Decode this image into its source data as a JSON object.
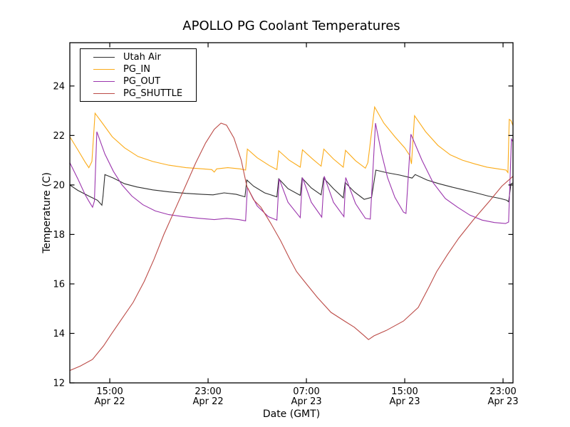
{
  "chart_data": {
    "type": "line",
    "title": "APOLLO PG Coolant Temperatures",
    "xlabel": "Date (GMT)",
    "ylabel": "Temperature (C)",
    "x_unit_hours_since": "Apr 22 00:00 GMT",
    "xlim": [
      11.75,
      47.81
    ],
    "ylim": [
      12,
      25.75
    ],
    "grid": false,
    "legend_position": "upper left",
    "background": "#ffffff",
    "axis_color": "#000000",
    "y_ticks": [
      12,
      14,
      16,
      18,
      20,
      22,
      24
    ],
    "x_ticks": [
      {
        "t": 15,
        "line1": "15:00",
        "line2": "Apr 22"
      },
      {
        "t": 23,
        "line1": "23:00",
        "line2": "Apr 22"
      },
      {
        "t": 31,
        "line1": "07:00",
        "line2": "Apr 23"
      },
      {
        "t": 39,
        "line1": "15:00",
        "line2": "Apr 23"
      },
      {
        "t": 47,
        "line1": "23:00",
        "line2": "Apr 23"
      }
    ],
    "series": [
      {
        "name": "Utah Air",
        "color": "#2e2e2e",
        "points": [
          [
            11.75,
            20.0
          ],
          [
            12.4,
            19.78
          ],
          [
            13.3,
            19.55
          ],
          [
            14.0,
            19.38
          ],
          [
            14.36,
            19.18
          ],
          [
            14.45,
            19.55
          ],
          [
            14.6,
            20.42
          ],
          [
            15.3,
            20.28
          ],
          [
            16.2,
            20.05
          ],
          [
            17.2,
            19.92
          ],
          [
            18.5,
            19.8
          ],
          [
            19.8,
            19.72
          ],
          [
            21.2,
            19.66
          ],
          [
            22.5,
            19.62
          ],
          [
            23.4,
            19.6
          ],
          [
            24.3,
            19.68
          ],
          [
            25.3,
            19.62
          ],
          [
            26.0,
            19.52
          ],
          [
            26.15,
            20.2
          ],
          [
            26.7,
            19.95
          ],
          [
            27.6,
            19.68
          ],
          [
            28.6,
            19.52
          ],
          [
            28.75,
            20.25
          ],
          [
            29.5,
            19.85
          ],
          [
            30.5,
            19.58
          ],
          [
            30.65,
            20.28
          ],
          [
            31.4,
            19.88
          ],
          [
            32.2,
            19.6
          ],
          [
            32.4,
            20.28
          ],
          [
            33.2,
            19.85
          ],
          [
            34.0,
            19.48
          ],
          [
            34.15,
            20.1
          ],
          [
            34.9,
            19.72
          ],
          [
            35.7,
            19.42
          ],
          [
            36.3,
            19.5
          ],
          [
            36.65,
            20.6
          ],
          [
            37.5,
            20.5
          ],
          [
            38.6,
            20.4
          ],
          [
            39.6,
            20.28
          ],
          [
            39.85,
            20.42
          ],
          [
            40.8,
            20.2
          ],
          [
            41.8,
            20.05
          ],
          [
            42.8,
            19.92
          ],
          [
            43.8,
            19.8
          ],
          [
            44.8,
            19.68
          ],
          [
            45.8,
            19.55
          ],
          [
            46.8,
            19.45
          ],
          [
            47.3,
            19.38
          ],
          [
            47.45,
            19.32
          ],
          [
            47.65,
            20.05
          ],
          [
            47.81,
            20.08
          ]
        ]
      },
      {
        "name": "PG_IN",
        "color": "#fbab18",
        "points": [
          [
            11.75,
            21.95
          ],
          [
            12.4,
            21.42
          ],
          [
            13.0,
            20.92
          ],
          [
            13.3,
            20.7
          ],
          [
            13.55,
            20.95
          ],
          [
            13.8,
            22.9
          ],
          [
            14.4,
            22.5
          ],
          [
            15.2,
            21.95
          ],
          [
            16.2,
            21.5
          ],
          [
            17.3,
            21.15
          ],
          [
            18.5,
            20.95
          ],
          [
            19.8,
            20.8
          ],
          [
            21.2,
            20.7
          ],
          [
            22.6,
            20.65
          ],
          [
            23.3,
            20.62
          ],
          [
            23.5,
            20.52
          ],
          [
            23.7,
            20.65
          ],
          [
            24.6,
            20.7
          ],
          [
            25.6,
            20.65
          ],
          [
            26.05,
            20.6
          ],
          [
            26.2,
            21.45
          ],
          [
            27.0,
            21.1
          ],
          [
            28.0,
            20.78
          ],
          [
            28.6,
            20.62
          ],
          [
            28.75,
            21.38
          ],
          [
            29.6,
            21.0
          ],
          [
            30.5,
            20.72
          ],
          [
            30.68,
            21.42
          ],
          [
            31.5,
            21.05
          ],
          [
            32.2,
            20.76
          ],
          [
            32.42,
            21.45
          ],
          [
            33.2,
            21.05
          ],
          [
            34.0,
            20.72
          ],
          [
            34.18,
            21.4
          ],
          [
            35.0,
            20.98
          ],
          [
            35.8,
            20.68
          ],
          [
            36.0,
            20.9
          ],
          [
            36.55,
            23.15
          ],
          [
            37.3,
            22.5
          ],
          [
            38.2,
            21.95
          ],
          [
            39.0,
            21.5
          ],
          [
            39.4,
            21.2
          ],
          [
            39.55,
            20.85
          ],
          [
            39.8,
            22.8
          ],
          [
            40.7,
            22.15
          ],
          [
            41.7,
            21.6
          ],
          [
            42.7,
            21.22
          ],
          [
            43.7,
            21.0
          ],
          [
            44.7,
            20.85
          ],
          [
            45.7,
            20.72
          ],
          [
            46.7,
            20.64
          ],
          [
            47.25,
            20.6
          ],
          [
            47.4,
            20.5
          ],
          [
            47.5,
            22.65
          ],
          [
            47.65,
            22.6
          ],
          [
            47.81,
            22.4
          ]
        ]
      },
      {
        "name": "PG_OUT",
        "color": "#9b35ad",
        "points": [
          [
            11.75,
            20.9
          ],
          [
            12.4,
            20.25
          ],
          [
            13.0,
            19.6
          ],
          [
            13.35,
            19.3
          ],
          [
            13.6,
            19.1
          ],
          [
            13.75,
            19.35
          ],
          [
            13.95,
            22.15
          ],
          [
            14.6,
            21.25
          ],
          [
            15.3,
            20.55
          ],
          [
            16.0,
            20.0
          ],
          [
            16.8,
            19.55
          ],
          [
            17.7,
            19.2
          ],
          [
            18.7,
            18.95
          ],
          [
            19.8,
            18.8
          ],
          [
            21.0,
            18.72
          ],
          [
            22.3,
            18.65
          ],
          [
            23.5,
            18.6
          ],
          [
            24.5,
            18.65
          ],
          [
            25.5,
            18.6
          ],
          [
            26.05,
            18.55
          ],
          [
            26.2,
            19.9
          ],
          [
            27.0,
            19.15
          ],
          [
            27.9,
            18.72
          ],
          [
            28.6,
            18.58
          ],
          [
            28.78,
            20.25
          ],
          [
            29.5,
            19.3
          ],
          [
            30.5,
            18.68
          ],
          [
            30.68,
            20.3
          ],
          [
            31.4,
            19.3
          ],
          [
            32.25,
            18.7
          ],
          [
            32.45,
            20.35
          ],
          [
            33.2,
            19.3
          ],
          [
            34.05,
            18.72
          ],
          [
            34.2,
            20.3
          ],
          [
            35.0,
            19.25
          ],
          [
            35.8,
            18.65
          ],
          [
            36.2,
            18.62
          ],
          [
            36.62,
            22.5
          ],
          [
            37.1,
            21.3
          ],
          [
            37.6,
            20.3
          ],
          [
            38.2,
            19.5
          ],
          [
            38.9,
            18.9
          ],
          [
            39.1,
            18.85
          ],
          [
            39.5,
            22.05
          ],
          [
            40.4,
            21.0
          ],
          [
            41.3,
            20.1
          ],
          [
            42.3,
            19.45
          ],
          [
            43.3,
            19.1
          ],
          [
            44.3,
            18.78
          ],
          [
            45.3,
            18.58
          ],
          [
            46.3,
            18.48
          ],
          [
            47.2,
            18.44
          ],
          [
            47.45,
            18.5
          ],
          [
            47.68,
            21.85
          ],
          [
            47.81,
            21.75
          ]
        ]
      },
      {
        "name": "PG_SHUTTLE",
        "color": "#bc4b47",
        "points": [
          [
            11.75,
            12.5
          ],
          [
            12.6,
            12.68
          ],
          [
            13.6,
            12.95
          ],
          [
            14.5,
            13.5
          ],
          [
            15.1,
            13.95
          ],
          [
            16.0,
            14.6
          ],
          [
            16.9,
            15.25
          ],
          [
            17.8,
            16.1
          ],
          [
            18.6,
            17.0
          ],
          [
            19.4,
            18.0
          ],
          [
            20.3,
            19.0
          ],
          [
            21.2,
            20.0
          ],
          [
            22.0,
            20.9
          ],
          [
            22.8,
            21.7
          ],
          [
            23.5,
            22.25
          ],
          [
            24.05,
            22.5
          ],
          [
            24.5,
            22.42
          ],
          [
            25.1,
            21.9
          ],
          [
            25.7,
            21.0
          ],
          [
            26.15,
            19.95
          ],
          [
            26.7,
            19.4
          ],
          [
            27.3,
            19.1
          ],
          [
            28.1,
            18.45
          ],
          [
            28.9,
            17.75
          ],
          [
            29.6,
            17.05
          ],
          [
            30.2,
            16.5
          ],
          [
            31.0,
            16.0
          ],
          [
            31.9,
            15.45
          ],
          [
            33.0,
            14.85
          ],
          [
            34.1,
            14.5
          ],
          [
            34.9,
            14.25
          ],
          [
            35.6,
            13.95
          ],
          [
            36.05,
            13.75
          ],
          [
            36.5,
            13.9
          ],
          [
            37.5,
            14.12
          ],
          [
            38.9,
            14.5
          ],
          [
            40.1,
            15.05
          ],
          [
            41.0,
            15.9
          ],
          [
            41.6,
            16.5
          ],
          [
            42.5,
            17.2
          ],
          [
            43.4,
            17.85
          ],
          [
            44.6,
            18.6
          ],
          [
            45.9,
            19.35
          ],
          [
            46.9,
            19.95
          ],
          [
            47.81,
            20.35
          ]
        ]
      }
    ]
  }
}
